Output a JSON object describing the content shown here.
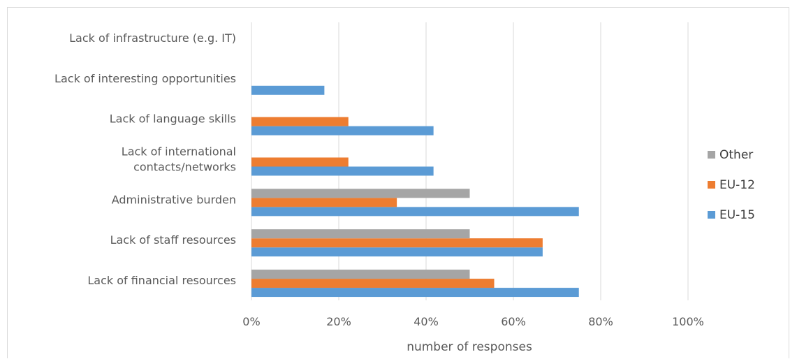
{
  "chart_data": {
    "type": "bar",
    "orientation": "horizontal",
    "categories": [
      "Lack of financial resources",
      "Lack of staff resources",
      "Administrative burden",
      "Lack of international contacts/networks",
      "Lack of language skills",
      "Lack of interesting opportunities",
      "Lack of infrastructure (e.g. IT)"
    ],
    "category_lines": [
      [
        "Lack of financial resources"
      ],
      [
        "Lack of staff resources"
      ],
      [
        "Administrative burden"
      ],
      [
        "Lack of international",
        "contacts/networks"
      ],
      [
        "Lack of language skills"
      ],
      [
        "Lack of interesting opportunities"
      ],
      [
        "Lack of infrastructure (e.g. IT)"
      ]
    ],
    "series": [
      {
        "name": "EU-15",
        "color": "#5b9bd5",
        "values": [
          75,
          66.7,
          75,
          41.7,
          41.7,
          16.7,
          0
        ]
      },
      {
        "name": "EU-12",
        "color": "#ed7d31",
        "values": [
          55.6,
          66.7,
          33.3,
          22.2,
          22.2,
          0,
          0
        ]
      },
      {
        "name": "Other",
        "color": "#a5a5a5",
        "values": [
          50,
          50,
          50,
          0,
          0,
          0,
          0
        ]
      }
    ],
    "legend_order": [
      "Other",
      "EU-12",
      "EU-15"
    ],
    "xlim": [
      0,
      100
    ],
    "xticks": [
      0,
      20,
      40,
      60,
      80,
      100
    ],
    "xtick_labels": [
      "0%",
      "20%",
      "40%",
      "60%",
      "80%",
      "100%"
    ],
    "xlabel": "number of responses",
    "ylabel": "",
    "title": "",
    "grid": "vertical",
    "gridline_color": "#d9d9d9",
    "legend_position": "right"
  }
}
